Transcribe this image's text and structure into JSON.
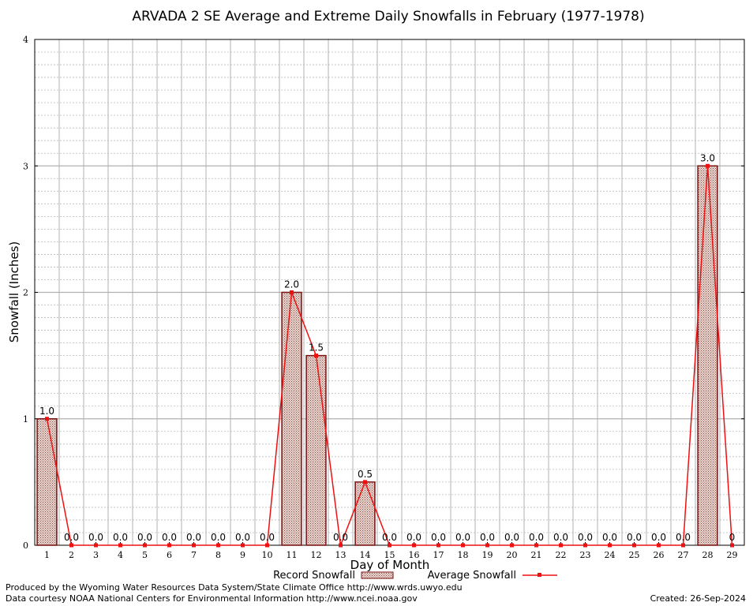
{
  "chart_data": {
    "type": "bar",
    "title": "ARVADA 2 SE Average and Extreme Daily Snowfalls in February (1977-1978)",
    "xlabel": "Day of Month",
    "ylabel": "Snowfall (Inches)",
    "ylim": [
      0,
      4
    ],
    "yticks": [
      "0",
      "1",
      "2",
      "3",
      "4"
    ],
    "categories": [
      "1",
      "2",
      "3",
      "4",
      "5",
      "6",
      "7",
      "8",
      "9",
      "10",
      "11",
      "12",
      "13",
      "14",
      "15",
      "16",
      "17",
      "18",
      "19",
      "20",
      "21",
      "22",
      "23",
      "24",
      "25",
      "26",
      "27",
      "28",
      "29"
    ],
    "series": [
      {
        "name": "Record Snowfall",
        "type": "bar",
        "values": [
          1.0,
          0,
          0,
          0,
          0,
          0,
          0,
          0,
          0,
          0,
          2.0,
          1.5,
          0,
          0.5,
          0,
          0,
          0,
          0,
          0,
          0,
          0,
          0,
          0,
          0,
          0,
          0,
          0,
          3.0,
          0
        ]
      },
      {
        "name": "Average Snowfall",
        "type": "line",
        "values": [
          1.0,
          0,
          0,
          0,
          0,
          0,
          0,
          0,
          0,
          0,
          2.0,
          1.5,
          0,
          0.5,
          0,
          0,
          0,
          0,
          0,
          0,
          0,
          0,
          0,
          0,
          0,
          0,
          0,
          3.0,
          0
        ]
      }
    ],
    "data_labels": [
      "1.0",
      "0.0",
      "0.0",
      "0.0",
      "0.0",
      "0.0",
      "0.0",
      "0.0",
      "0.0",
      "0.0",
      "2.0",
      "1.5",
      "0.0",
      "0.5",
      "0.0",
      "0.0",
      "0.0",
      "0.0",
      "0.0",
      "0.0",
      "0.0",
      "0.0",
      "0.0",
      "0.0",
      "0.0",
      "0.0",
      "0.0",
      "3.0",
      "0"
    ],
    "grid": true,
    "legend": "bottom",
    "colors": {
      "bar_fill": "#c8a8a0",
      "bar_stroke": "#7a1010",
      "line": "#ee1111",
      "grid": "#b0b0b0"
    }
  },
  "footer": {
    "credit1": "Produced by the Wyoming Water Resources Data System/State Climate Office http://www.wrds.uwyo.edu",
    "credit2": "Data courtesy NOAA National Centers for Environmental Information http://www.ncei.noaa.gov",
    "created": "Created:  26-Sep-2024"
  }
}
